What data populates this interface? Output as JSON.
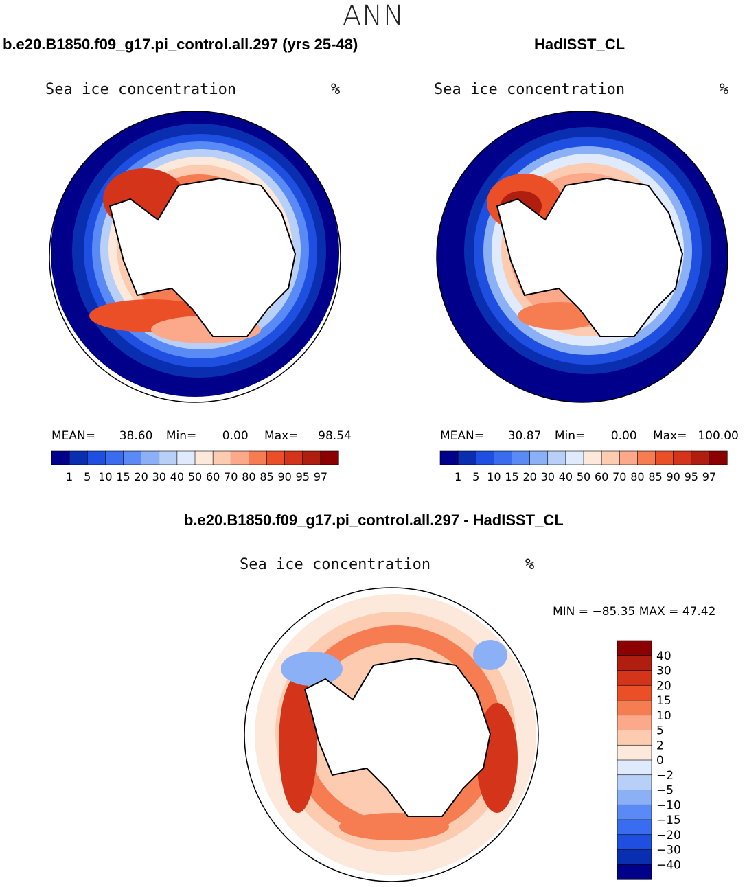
{
  "header": {
    "title": "ANN"
  },
  "panels": {
    "model": {
      "case_title": "b.e20.B1850.f09_g17.pi_control.all.297 (yrs 25-48)",
      "variable": "Sea ice concentration",
      "units": "%",
      "stats": {
        "mean_label": "MEAN=",
        "mean": "38.60",
        "min_label": "Min=",
        "min": "0.00",
        "max_label": "Max=",
        "max": "98.54"
      }
    },
    "obs": {
      "case_title": "HadISST_CL",
      "variable": "Sea ice concentration",
      "units": "%",
      "stats": {
        "mean_label": "MEAN=",
        "mean": "30.87",
        "min_label": "Min=",
        "min": "0.00",
        "max_label": "Max=",
        "max": "100.00"
      }
    },
    "diff": {
      "case_title": "b.e20.B1850.f09_g17.pi_control.all.297 - HadISST_CL",
      "variable": "Sea ice concentration",
      "units": "%",
      "minmax": "MIN = −85.35 MAX =  47.42"
    }
  },
  "colorbars": {
    "abs": {
      "labels": [
        "1",
        "5",
        "10",
        "15",
        "20",
        "30",
        "40",
        "50",
        "60",
        "70",
        "80",
        "85",
        "90",
        "95",
        "97"
      ],
      "colors": [
        "#00008b",
        "#0a2eb0",
        "#1e4fe0",
        "#3a6cf0",
        "#5a8af5",
        "#8cb0f5",
        "#b8d0f8",
        "#dfeafc",
        "#fde9dc",
        "#fccbb0",
        "#fba98a",
        "#f67c52",
        "#ea4f28",
        "#d3341a",
        "#b01e10",
        "#8b0000"
      ]
    },
    "diff": {
      "labels": [
        "40",
        "30",
        "20",
        "15",
        "10",
        "5",
        "2",
        "0",
        "−2",
        "−5",
        "−10",
        "−15",
        "−20",
        "−30",
        "−40"
      ],
      "colors": [
        "#8b0000",
        "#b01e10",
        "#d3341a",
        "#ea4f28",
        "#f67c52",
        "#fba98a",
        "#fccbb0",
        "#fde9dc",
        "#dfeafc",
        "#b8d0f8",
        "#8cb0f5",
        "#5a8af5",
        "#3a6cf0",
        "#1e4fe0",
        "#0a2eb0",
        "#00008b"
      ]
    }
  }
}
